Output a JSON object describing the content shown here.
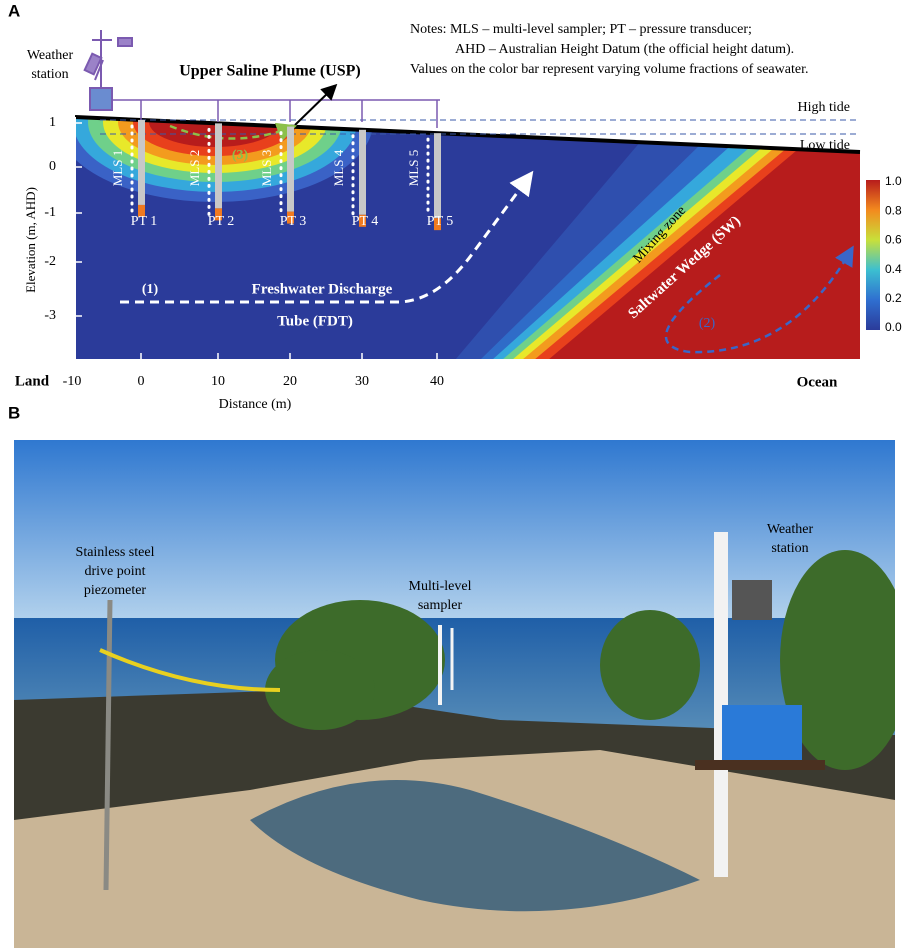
{
  "panel_a": {
    "label": "A",
    "notes": [
      "Notes: MLS – multi-level sampler; PT – pressure transducer;",
      "AHD – Australian Height Datum (the official height datum).",
      "Values on the color bar represent varying volume fractions of seawater."
    ],
    "weather_station": [
      "Weather",
      "station"
    ],
    "plume_label": "Upper Saline Plume (USP)",
    "high_tide": "High tide",
    "low_tide": "Low tide",
    "samplers": [
      {
        "mls": "MLS 1",
        "pt": "PT 1"
      },
      {
        "mls": "MLS 2",
        "pt": "PT 2"
      },
      {
        "mls": "MLS 3",
        "pt": "PT 3"
      },
      {
        "mls": "MLS 4",
        "pt": "PT 4"
      },
      {
        "mls": "MLS 5",
        "pt": "PT 5"
      }
    ],
    "fdt_number": "(1)",
    "fdt": [
      "Freshwater Discharge",
      "Tube (FDT)"
    ],
    "plume_number": "(3)",
    "mixing_zone": "Mixing zone",
    "wedge": "Saltwater Wedge (SW)",
    "wedge_number": "(2)",
    "y_axis": {
      "title": "Elevation (m, AHD)",
      "ticks": [
        "1",
        "0",
        "-1",
        "-2",
        "-3"
      ]
    },
    "x_axis": {
      "title": "Distance (m)",
      "ticks": [
        "-10",
        "0",
        "10",
        "20",
        "30",
        "40"
      ],
      "left": "Land",
      "right": "Ocean"
    },
    "colorbar": {
      "ticks": [
        "1.0",
        "0.8",
        "0.6",
        "0.4",
        "0.2",
        "0.0"
      ]
    }
  },
  "panel_b": {
    "label": "B",
    "piezometer": [
      "Stainless steel",
      "drive point",
      "piezometer"
    ],
    "sampler": [
      "Multi-level",
      "sampler"
    ],
    "weather_station": [
      "Weather",
      "station"
    ]
  }
}
